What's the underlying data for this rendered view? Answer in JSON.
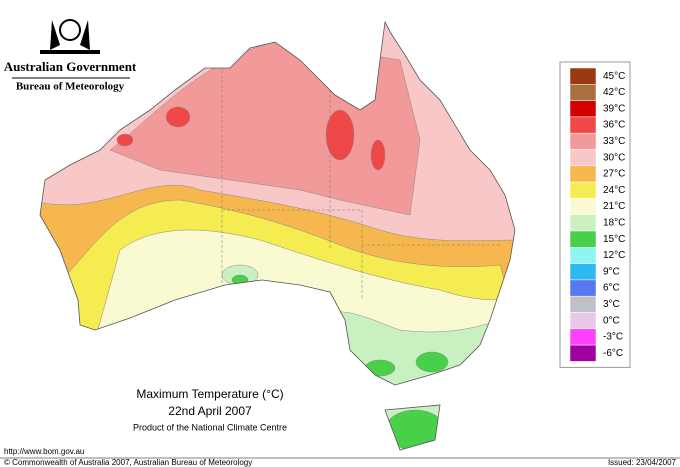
{
  "header": {
    "government": "Australian Government",
    "bureau": "Bureau of Meteorology"
  },
  "title": {
    "line1": "Maximum Temperature (°C)",
    "line2": "22nd April 2007",
    "subtitle": "Product of the National Climate Centre"
  },
  "footer": {
    "url": "http://www.bom.gov.au",
    "copyright": "© Commonwealth of Australia 2007, Australian Bureau of Meteorology",
    "issued": "Issued: 23/04/2007"
  },
  "legend": {
    "items": [
      {
        "label": "45°C",
        "color": "#9a3a12"
      },
      {
        "label": "42°C",
        "color": "#a8703c"
      },
      {
        "label": "39°C",
        "color": "#d40000"
      },
      {
        "label": "36°C",
        "color": "#f04848"
      },
      {
        "label": "33°C",
        "color": "#f29a9a"
      },
      {
        "label": "30°C",
        "color": "#f8c8c8"
      },
      {
        "label": "27°C",
        "color": "#f6b84e"
      },
      {
        "label": "24°C",
        "color": "#f4ec50"
      },
      {
        "label": "21°C",
        "color": "#fafad2"
      },
      {
        "label": "18°C",
        "color": "#c8f0c0"
      },
      {
        "label": "15°C",
        "color": "#48d048"
      },
      {
        "label": "12°C",
        "color": "#90f4f4"
      },
      {
        "label": "9°C",
        "color": "#30b8f0"
      },
      {
        "label": "6°C",
        "color": "#5878f0"
      },
      {
        "label": "3°C",
        "color": "#c0c0c8"
      },
      {
        "label": "0°C",
        "color": "#e8c8e8"
      },
      {
        "label": "-3°C",
        "color": "#ff40ff"
      },
      {
        "label": "-6°C",
        "color": "#a000a0"
      }
    ]
  }
}
